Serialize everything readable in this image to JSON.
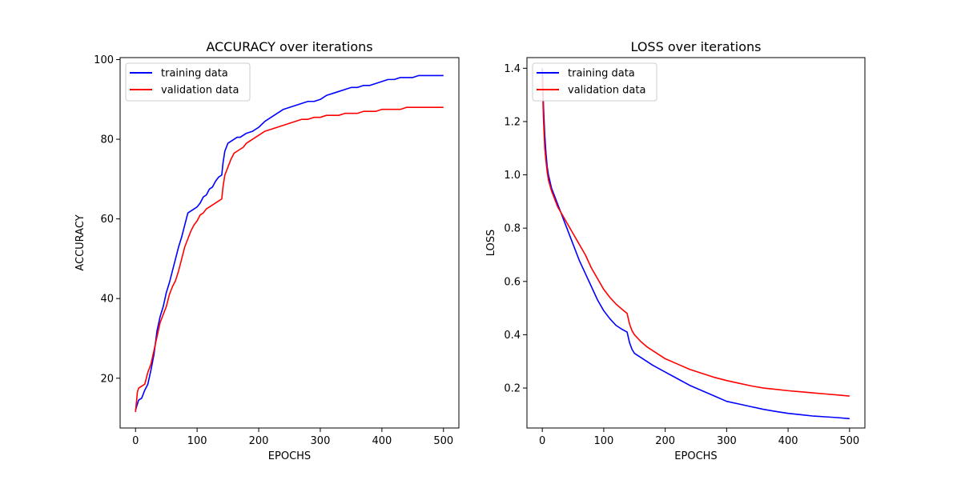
{
  "chart_data": [
    {
      "type": "line",
      "title": "ACCURACY over iterations",
      "xlabel": "EPOCHS",
      "ylabel": "ACCURACY",
      "xlim": [
        -25,
        525
      ],
      "ylim": [
        7.5,
        100.5
      ],
      "xticks": [
        0,
        100,
        200,
        300,
        400,
        500
      ],
      "yticks": [
        20,
        40,
        60,
        80,
        100
      ],
      "legend": "top-left",
      "grid": false,
      "series": [
        {
          "name": "training data",
          "color": "#0000ff",
          "x": [
            0,
            5,
            10,
            15,
            20,
            25,
            30,
            35,
            40,
            45,
            50,
            55,
            60,
            65,
            70,
            75,
            80,
            85,
            90,
            95,
            100,
            105,
            110,
            115,
            120,
            125,
            130,
            135,
            140,
            142,
            145,
            150,
            155,
            160,
            165,
            170,
            175,
            180,
            190,
            200,
            210,
            220,
            230,
            240,
            250,
            260,
            270,
            280,
            290,
            300,
            310,
            320,
            330,
            340,
            350,
            360,
            370,
            380,
            390,
            400,
            410,
            420,
            430,
            440,
            450,
            460,
            470,
            480,
            490,
            500
          ],
          "y": [
            12.0,
            14.5,
            15.0,
            17.0,
            18.5,
            22.0,
            26.0,
            32.0,
            35.5,
            38.0,
            41.5,
            44.0,
            47.0,
            50.0,
            53.0,
            55.5,
            58.5,
            61.5,
            62.0,
            62.5,
            63.0,
            64.0,
            65.5,
            66.0,
            67.5,
            68.0,
            69.5,
            70.5,
            71.0,
            74.0,
            77.0,
            79.0,
            79.5,
            80.0,
            80.5,
            80.5,
            81.0,
            81.5,
            82.0,
            83.0,
            84.5,
            85.5,
            86.5,
            87.5,
            88.0,
            88.5,
            89.0,
            89.5,
            89.5,
            90.0,
            91.0,
            91.5,
            92.0,
            92.5,
            93.0,
            93.0,
            93.5,
            93.5,
            94.0,
            94.5,
            95.0,
            95.0,
            95.5,
            95.5,
            95.5,
            96.0,
            96.0,
            96.0,
            96.0,
            96.0
          ]
        },
        {
          "name": "validation data",
          "color": "#ff0000",
          "x": [
            0,
            3,
            5,
            10,
            15,
            20,
            25,
            30,
            35,
            40,
            45,
            50,
            55,
            60,
            65,
            70,
            75,
            80,
            85,
            90,
            95,
            100,
            105,
            110,
            115,
            120,
            125,
            130,
            135,
            140,
            142,
            145,
            150,
            155,
            160,
            165,
            170,
            175,
            180,
            190,
            200,
            210,
            220,
            230,
            240,
            250,
            260,
            270,
            280,
            290,
            300,
            310,
            320,
            330,
            340,
            350,
            360,
            370,
            380,
            390,
            400,
            410,
            420,
            430,
            440,
            450,
            460,
            470,
            480,
            490,
            500
          ],
          "y": [
            11.5,
            16.5,
            17.5,
            18.0,
            18.5,
            21.5,
            23.5,
            27.0,
            30.5,
            34.0,
            36.0,
            38.0,
            41.0,
            43.0,
            44.5,
            47.0,
            50.0,
            53.0,
            55.0,
            57.0,
            58.5,
            59.5,
            61.0,
            61.5,
            62.5,
            63.0,
            63.5,
            64.0,
            64.5,
            65.0,
            68.0,
            71.0,
            73.0,
            75.0,
            76.5,
            77.0,
            77.5,
            78.0,
            79.0,
            80.0,
            81.0,
            82.0,
            82.5,
            83.0,
            83.5,
            84.0,
            84.5,
            85.0,
            85.0,
            85.5,
            85.5,
            86.0,
            86.0,
            86.0,
            86.5,
            86.5,
            86.5,
            87.0,
            87.0,
            87.0,
            87.5,
            87.5,
            87.5,
            87.5,
            88.0,
            88.0,
            88.0,
            88.0,
            88.0,
            88.0,
            88.0
          ]
        }
      ]
    },
    {
      "type": "line",
      "title": "LOSS over iterations",
      "xlabel": "EPOCHS",
      "ylabel": "LOSS",
      "xlim": [
        -25,
        525
      ],
      "ylim": [
        0.05,
        1.44
      ],
      "xticks": [
        0,
        100,
        200,
        300,
        400,
        500
      ],
      "yticks": [
        0.2,
        0.4,
        0.6,
        0.8,
        1.0,
        1.2,
        1.4
      ],
      "legend": "top-left",
      "grid": false,
      "series": [
        {
          "name": "training data",
          "color": "#0000ff",
          "x": [
            0,
            2,
            4,
            6,
            8,
            10,
            15,
            20,
            25,
            30,
            40,
            50,
            60,
            70,
            80,
            90,
            100,
            110,
            120,
            130,
            138,
            142,
            146,
            150,
            160,
            170,
            180,
            200,
            220,
            240,
            260,
            280,
            300,
            320,
            340,
            360,
            380,
            400,
            420,
            440,
            460,
            480,
            500
          ],
          "y": [
            1.4,
            1.25,
            1.15,
            1.08,
            1.03,
            1.0,
            0.95,
            0.92,
            0.89,
            0.86,
            0.8,
            0.74,
            0.68,
            0.63,
            0.58,
            0.53,
            0.49,
            0.46,
            0.435,
            0.42,
            0.41,
            0.37,
            0.345,
            0.33,
            0.315,
            0.3,
            0.285,
            0.26,
            0.235,
            0.21,
            0.19,
            0.17,
            0.15,
            0.14,
            0.13,
            0.12,
            0.112,
            0.105,
            0.1,
            0.095,
            0.092,
            0.089,
            0.085
          ]
        },
        {
          "name": "validation data",
          "color": "#ff0000",
          "x": [
            0,
            2,
            4,
            6,
            8,
            10,
            15,
            20,
            25,
            30,
            40,
            50,
            60,
            70,
            80,
            90,
            100,
            110,
            120,
            130,
            138,
            142,
            146,
            150,
            160,
            170,
            180,
            200,
            220,
            240,
            260,
            280,
            300,
            320,
            340,
            360,
            380,
            400,
            420,
            440,
            460,
            480,
            500
          ],
          "y": [
            1.36,
            1.2,
            1.1,
            1.05,
            1.01,
            0.98,
            0.94,
            0.91,
            0.88,
            0.86,
            0.82,
            0.78,
            0.74,
            0.7,
            0.65,
            0.61,
            0.57,
            0.54,
            0.515,
            0.495,
            0.48,
            0.44,
            0.415,
            0.4,
            0.375,
            0.355,
            0.34,
            0.31,
            0.29,
            0.27,
            0.255,
            0.24,
            0.228,
            0.218,
            0.208,
            0.2,
            0.195,
            0.19,
            0.186,
            0.182,
            0.178,
            0.174,
            0.17
          ]
        }
      ]
    }
  ]
}
